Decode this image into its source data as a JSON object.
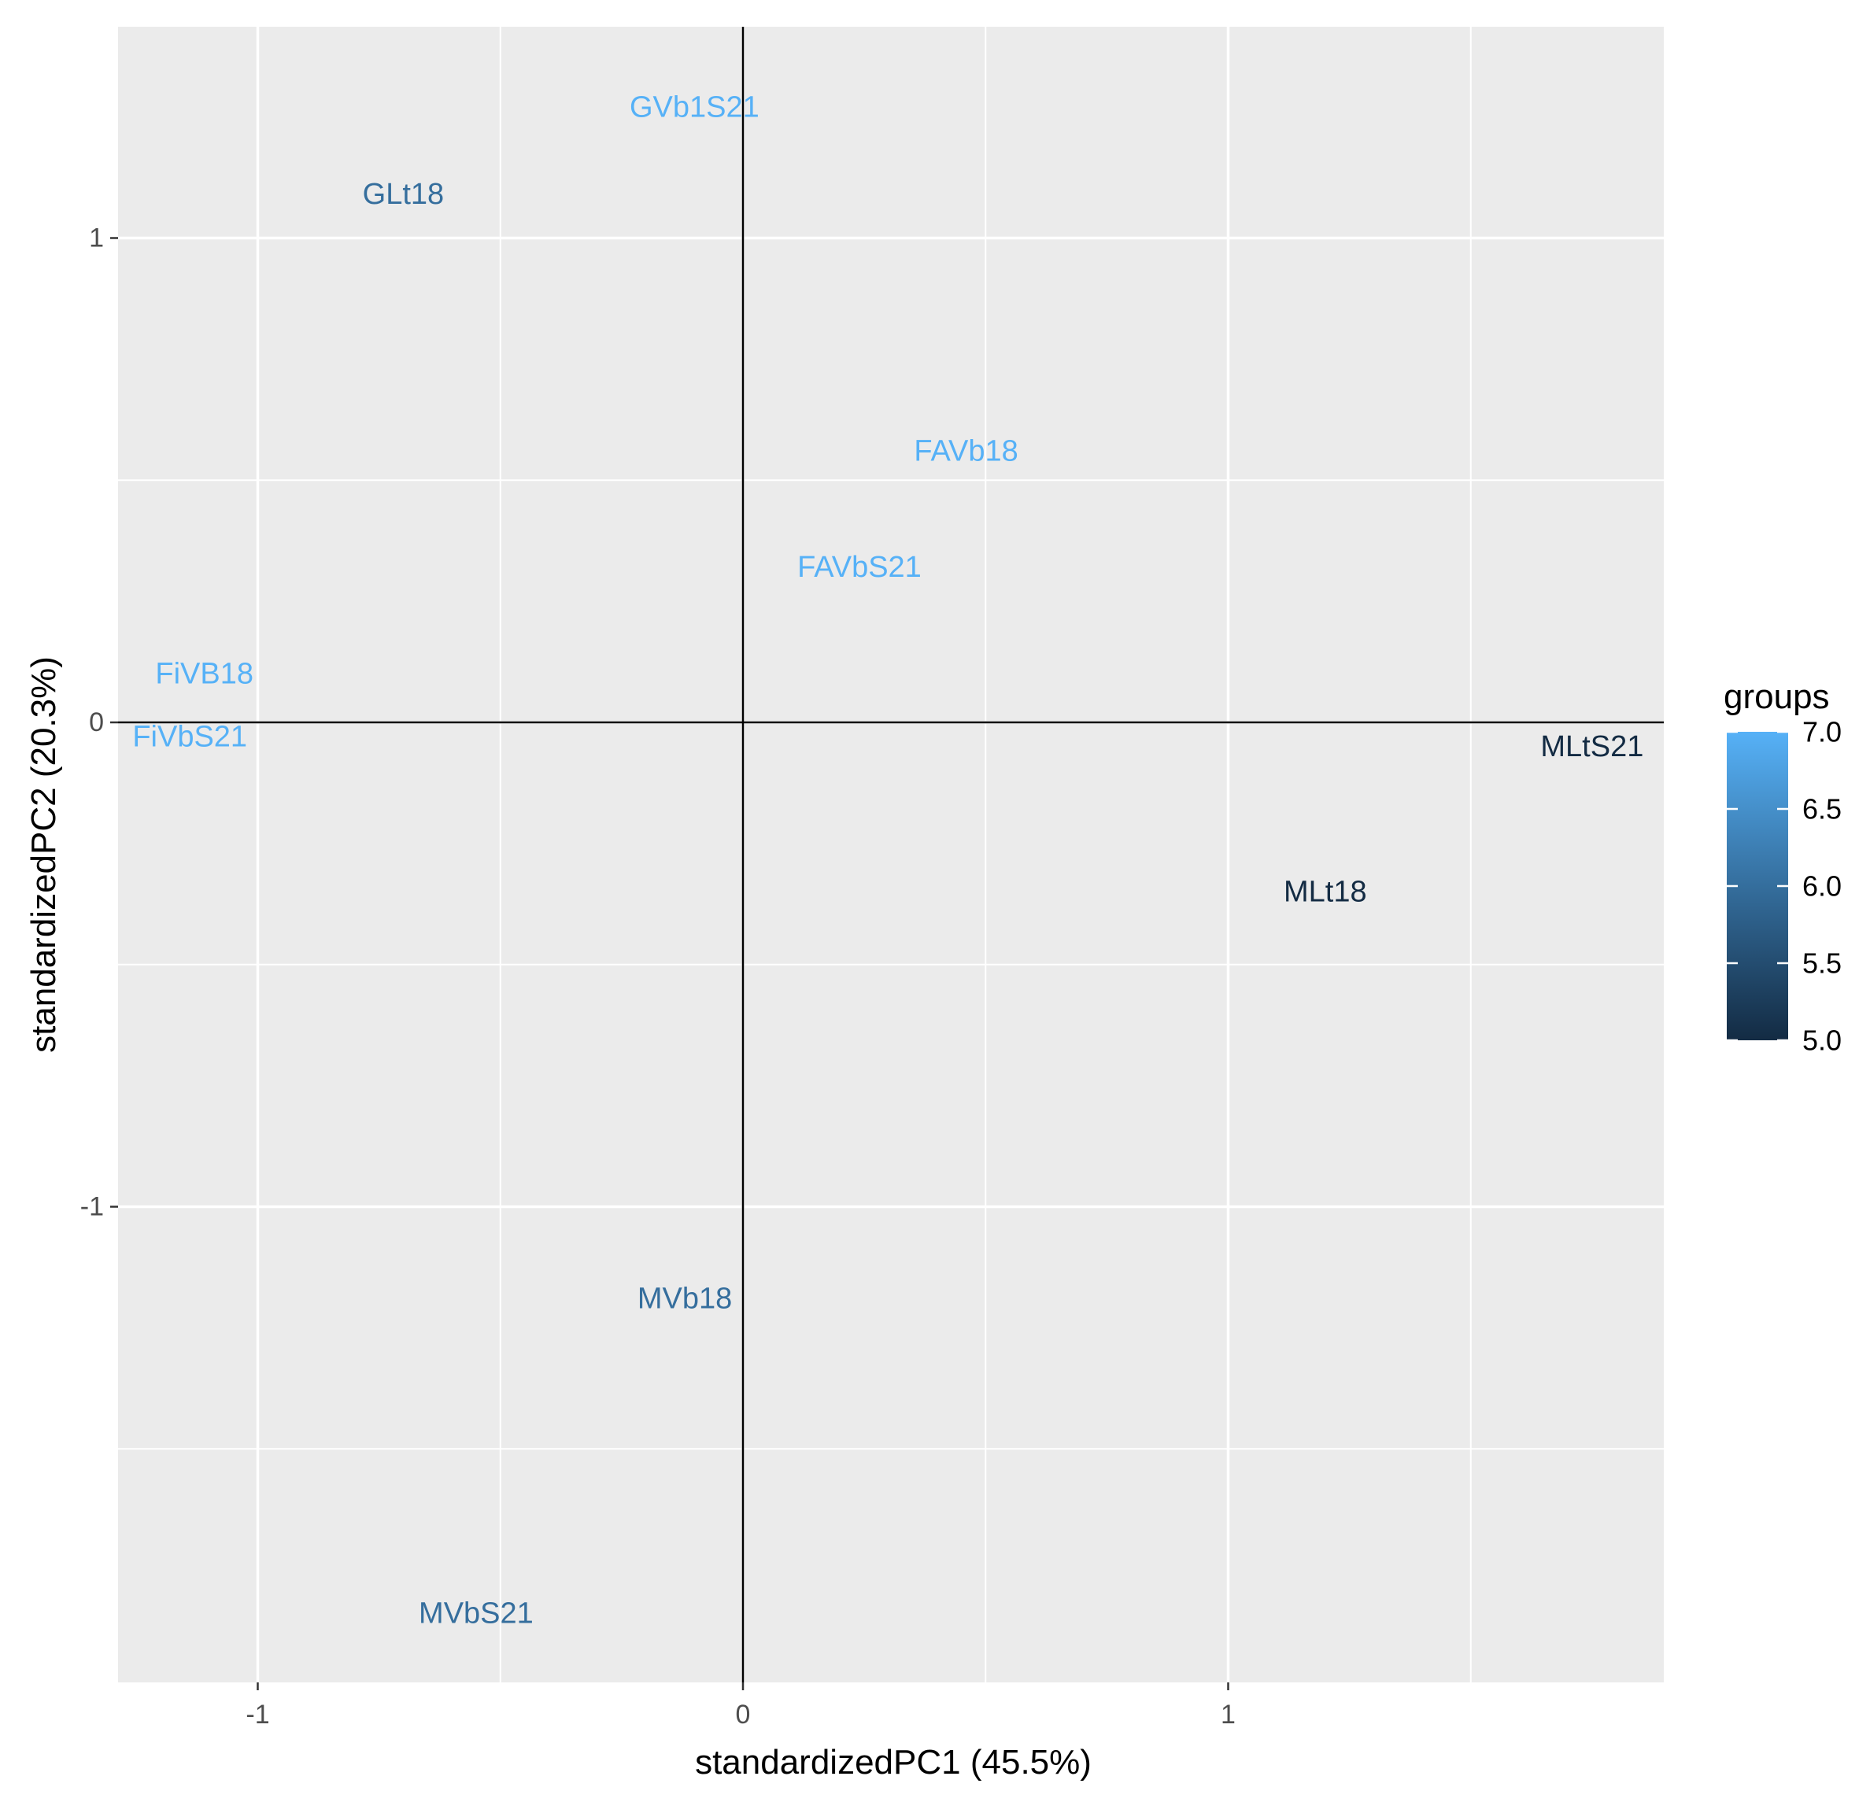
{
  "chart_data": {
    "type": "scatter",
    "title": "",
    "xlabel": "standardizedPC1 (45.5%)",
    "ylabel": "standardizedPC2 (20.3%)",
    "xlim": [
      -1.29,
      1.9
    ],
    "ylim": [
      -1.98,
      1.43
    ],
    "x_ticks": [
      -1,
      0,
      1
    ],
    "y_ticks": [
      -1,
      0,
      1
    ],
    "x_tick_labels": [
      "-1",
      "0",
      "1"
    ],
    "y_tick_labels": [
      "-1",
      "0",
      "1"
    ],
    "grid": true,
    "reference_lines": {
      "x": 0,
      "y": 0
    },
    "points": [
      {
        "label": "GVb1S21",
        "x": -0.1,
        "y": 1.27,
        "group": 7
      },
      {
        "label": "GLt18",
        "x": -0.7,
        "y": 1.09,
        "group": 6
      },
      {
        "label": "FAVb18",
        "x": 0.46,
        "y": 0.56,
        "group": 7
      },
      {
        "label": "FAVbS21",
        "x": 0.24,
        "y": 0.32,
        "group": 7
      },
      {
        "label": "FiVB18",
        "x": -1.11,
        "y": 0.1,
        "group": 7
      },
      {
        "label": "FiVbS21",
        "x": -1.14,
        "y": -0.03,
        "group": 7
      },
      {
        "label": "MLtS21",
        "x": 1.75,
        "y": -0.05,
        "group": 5
      },
      {
        "label": "MLt18",
        "x": 1.2,
        "y": -0.35,
        "group": 5
      },
      {
        "label": "MVb18",
        "x": -0.12,
        "y": -1.19,
        "group": 6
      },
      {
        "label": "MVbS21",
        "x": -0.55,
        "y": -1.84,
        "group": 6
      }
    ],
    "legend": {
      "title": "groups",
      "placement": "right",
      "min": 5.0,
      "max": 7.0,
      "breaks": [
        5.0,
        5.5,
        6.0,
        6.5,
        7.0
      ],
      "break_labels": [
        "5.0",
        "5.5",
        "6.0",
        "6.5",
        "7.0"
      ],
      "low_color": "#132B43",
      "high_color": "#56B1F7"
    },
    "colors": {
      "panel_background": "#EBEBEB",
      "grid_line": "#FFFFFF",
      "reference_line": "#000000",
      "axis_text": "#4D4D4D",
      "axis_title": "#000000"
    }
  }
}
